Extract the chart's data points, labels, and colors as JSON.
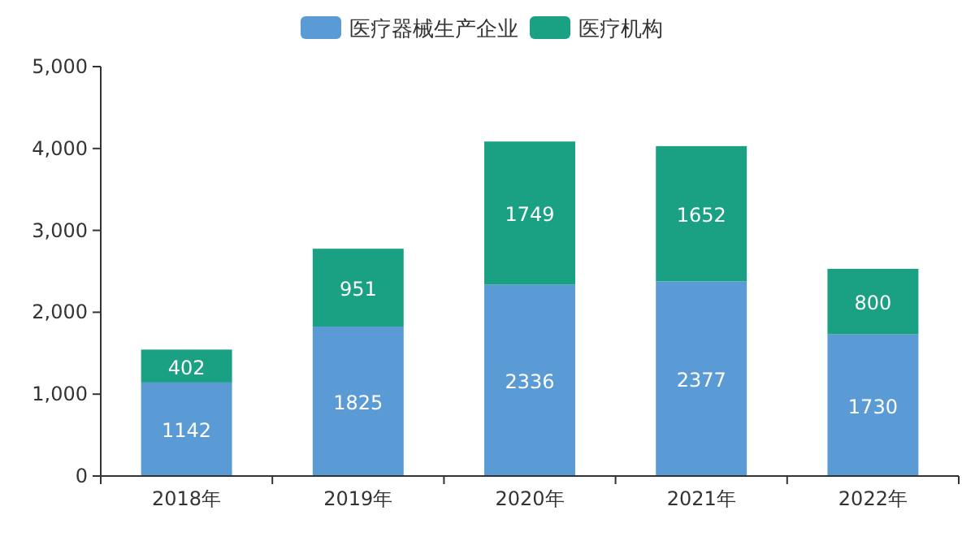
{
  "chart_data": {
    "type": "bar",
    "stacked": true,
    "categories": [
      "2018年",
      "2019年",
      "2020年",
      "2021年",
      "2022年"
    ],
    "series": [
      {
        "name": "医疗器械生产企业",
        "color": "#5b9bd5",
        "values": [
          1142,
          1825,
          2336,
          2377,
          1730
        ]
      },
      {
        "name": "医疗机构",
        "color": "#1aa083",
        "values": [
          402,
          951,
          1749,
          1652,
          800
        ]
      }
    ],
    "ylim": [
      0,
      5000
    ],
    "yticks": [
      0,
      {
        "value": 1000,
        "label": "1,000"
      },
      {
        "value": 2000,
        "label": "2,000"
      },
      {
        "value": 3000,
        "label": "3,000"
      },
      {
        "value": 4000,
        "label": "4,000"
      },
      {
        "value": 5000,
        "label": "5,000"
      }
    ],
    "data_labels": true,
    "legend": "top",
    "grid": false
  }
}
